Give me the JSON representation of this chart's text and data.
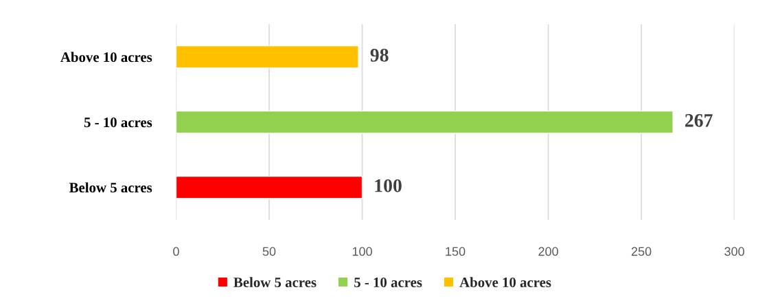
{
  "chart_data": {
    "type": "bar",
    "orientation": "horizontal",
    "stacked": true,
    "categories": [
      "Above 10 acres",
      "5 - 10 acres",
      "Below 5 acres"
    ],
    "series": [
      {
        "name": "Below 5 acres",
        "color": "#ff0000",
        "values": [
          null,
          null,
          100
        ]
      },
      {
        "name": "5 - 10 acres",
        "color": "#92d050",
        "values": [
          null,
          267,
          null
        ]
      },
      {
        "name": "Above 10 acres",
        "color": "#ffc000",
        "values": [
          98,
          null,
          null
        ]
      }
    ],
    "xlim": [
      0,
      300
    ],
    "xticks": [
      0,
      50,
      100,
      150,
      200,
      250,
      300
    ],
    "grid": "x",
    "data_labels": true,
    "legend": "bottom"
  }
}
